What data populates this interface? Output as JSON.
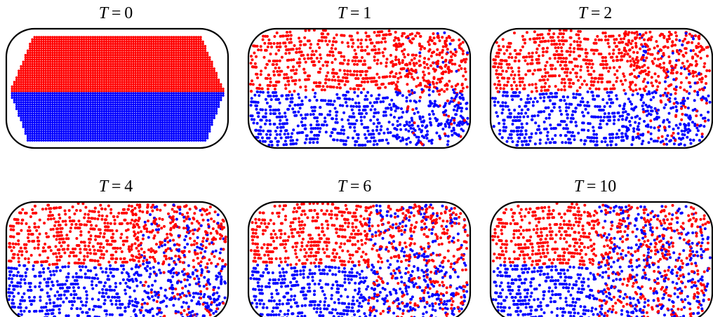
{
  "figure": {
    "panels": [
      {
        "label": "T = 0",
        "var": "T",
        "value": "0",
        "mixing": 0.0
      },
      {
        "label": "T = 1",
        "var": "T",
        "value": "1",
        "mixing": 0.18
      },
      {
        "label": "T = 2",
        "var": "T",
        "value": "2",
        "mixing": 0.32
      },
      {
        "label": "T = 4",
        "var": "T",
        "value": "4",
        "mixing": 0.5
      },
      {
        "label": "T = 6",
        "var": "T",
        "value": "6",
        "mixing": 0.68
      },
      {
        "label": "T = 10",
        "var": "T",
        "value": "10",
        "mixing": 0.85
      }
    ],
    "colors": {
      "upper_particles": "#ff0000",
      "lower_particles": "#0000ff",
      "boundary": "#000000"
    }
  }
}
